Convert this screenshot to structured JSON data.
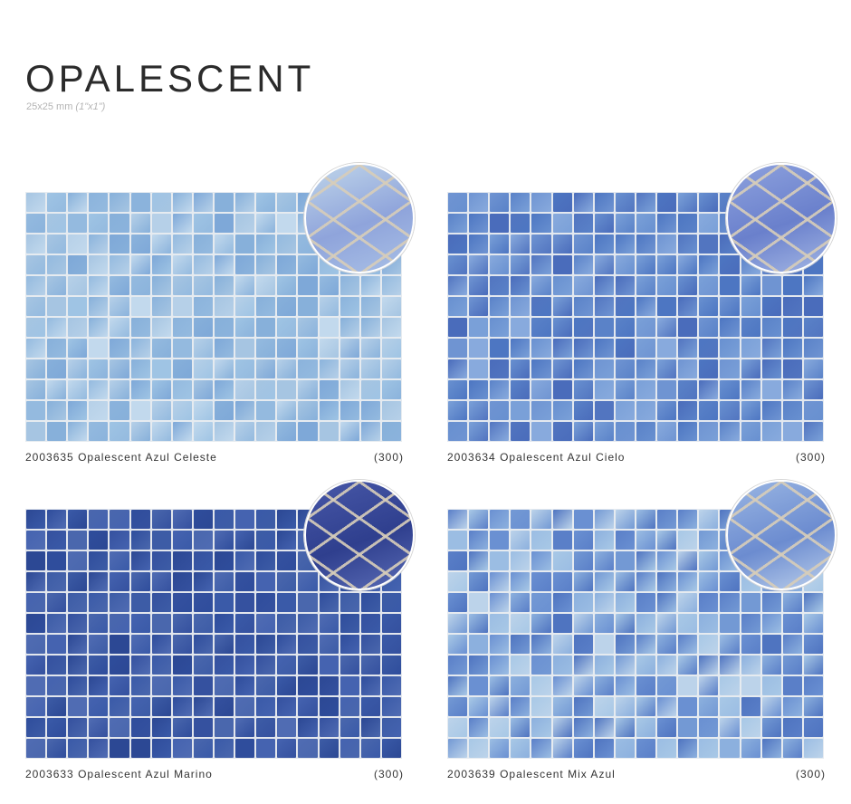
{
  "header": {
    "title": "OPALESCENT",
    "size_metric": "25x25 mm",
    "size_imperial": "(1\"x1\")"
  },
  "products": [
    {
      "code": "2003635",
      "name": "Opalescent Azul Celeste",
      "count": "(300)",
      "palette": [
        "#a6c5e2",
        "#8bb3dc",
        "#b6d0e8",
        "#7ea8d8",
        "#c2d9ed",
        "#94badf",
        "#9fc4e4",
        "#87b0da"
      ],
      "grout_color": "#e6ebf0",
      "zoom_colors": [
        "#c0d6ea",
        "#8fa4db",
        "#a9c0e6"
      ]
    },
    {
      "code": "2003634",
      "name": "Opalescent Azul Cielo",
      "count": "(300)",
      "palette": [
        "#5a82c8",
        "#4d76c2",
        "#6890d0",
        "#7aa0d8",
        "#5275c0",
        "#88aadd",
        "#4a6cbb",
        "#6f94d2"
      ],
      "grout_color": "#e3e8ef",
      "zoom_colors": [
        "#8ea2de",
        "#6a80cc",
        "#a4b7e4"
      ]
    },
    {
      "code": "2003633",
      "name": "Opalescent Azul Marino",
      "count": "(300)",
      "palette": [
        "#3a5aa8",
        "#2f4d9c",
        "#4563b0",
        "#35519f",
        "#506cb3",
        "#2c4894",
        "#3d5ca6",
        "#4a67ad"
      ],
      "grout_color": "#e2e6ed",
      "zoom_colors": [
        "#4858a8",
        "#2f3f8e",
        "#5a6cb6"
      ]
    },
    {
      "code": "2003639",
      "name": "Opalescent Mix Azul",
      "count": "(300)",
      "palette": [
        "#6a90d2",
        "#8cb0de",
        "#4f74c0",
        "#a8c8e6",
        "#5a7fc8",
        "#9bbde3",
        "#7399d4",
        "#bcd3ea"
      ],
      "grout_color": "#e6ebf0",
      "zoom_colors": [
        "#9ab6e3",
        "#6c8cd0",
        "#bcd0ec"
      ]
    }
  ]
}
